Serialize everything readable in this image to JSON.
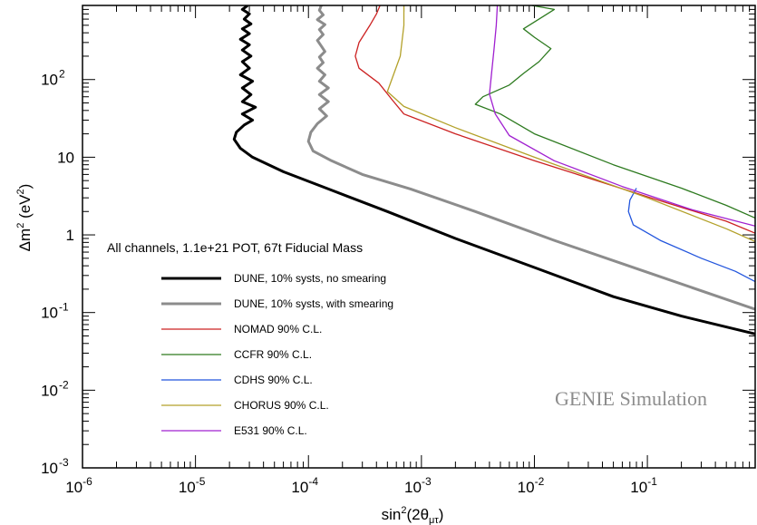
{
  "chart_data": {
    "type": "line",
    "xlabel": {
      "base": "sin",
      "sup": "2",
      "arg_open": "(2θ",
      "sub": "μτ",
      "arg_close": ")"
    },
    "ylabel": {
      "prefix": "Δm",
      "sup": "2",
      "suffix": " (eV",
      "sup2": "2",
      "close": ")"
    },
    "xscale": "log",
    "yscale": "log",
    "xlim": [
      1e-06,
      0.9
    ],
    "ylim": [
      0.001,
      900
    ],
    "x_ticks": [
      {
        "value": 1e-06,
        "base": "10",
        "exp": "-6"
      },
      {
        "value": 1e-05,
        "base": "10",
        "exp": "-5"
      },
      {
        "value": 0.0001,
        "base": "10",
        "exp": "-4"
      },
      {
        "value": 0.001,
        "base": "10",
        "exp": "-3"
      },
      {
        "value": 0.01,
        "base": "10",
        "exp": "-2"
      },
      {
        "value": 0.1,
        "base": "10",
        "exp": "-1"
      }
    ],
    "y_ticks": [
      {
        "value": 0.001,
        "base": "10",
        "exp": "-3"
      },
      {
        "value": 0.01,
        "base": "10",
        "exp": "-2"
      },
      {
        "value": 0.1,
        "base": "10",
        "exp": "-1"
      },
      {
        "value": 1,
        "base": "1",
        "exp": ""
      },
      {
        "value": 10,
        "base": "10",
        "exp": ""
      },
      {
        "value": 100,
        "base": "10",
        "exp": "2"
      }
    ],
    "header": "All channels, 1.1e+21 POT, 67t Fiducial Mass",
    "watermark": "GENIE Simulation",
    "legend_position": "left",
    "series": [
      {
        "name": "DUNE, 10% systs, no smearing",
        "color": "#000000",
        "width": 3,
        "points": [
          [
            2.9e-05,
            900
          ],
          [
            2.6e-05,
            800
          ],
          [
            3e-05,
            700
          ],
          [
            2.7e-05,
            600
          ],
          [
            3.1e-05,
            520
          ],
          [
            2.6e-05,
            450
          ],
          [
            3e-05,
            390
          ],
          [
            2.5e-05,
            330
          ],
          [
            3e-05,
            280
          ],
          [
            2.6e-05,
            240
          ],
          [
            3.1e-05,
            200
          ],
          [
            2.6e-05,
            170
          ],
          [
            3e-05,
            140
          ],
          [
            2.5e-05,
            115
          ],
          [
            3.2e-05,
            95
          ],
          [
            2.6e-05,
            78
          ],
          [
            3.1e-05,
            64
          ],
          [
            2.6e-05,
            52
          ],
          [
            3.4e-05,
            44
          ],
          [
            2.6e-05,
            36
          ],
          [
            3.2e-05,
            30
          ],
          [
            2.7e-05,
            26
          ],
          [
            2.3e-05,
            21
          ],
          [
            2.2e-05,
            17
          ],
          [
            2.5e-05,
            13
          ],
          [
            3.2e-05,
            10
          ],
          [
            6e-05,
            6.5
          ],
          [
            0.00015,
            3.9
          ],
          [
            0.0005,
            2.0
          ],
          [
            0.002,
            0.9
          ],
          [
            0.01,
            0.38
          ],
          [
            0.05,
            0.16
          ],
          [
            0.2,
            0.09
          ],
          [
            0.9,
            0.053
          ]
        ]
      },
      {
        "name": "DUNE, 10% systs, with smearing",
        "color": "#8c8c8c",
        "width": 3,
        "points": [
          [
            0.00013,
            900
          ],
          [
            0.000125,
            780
          ],
          [
            0.000135,
            680
          ],
          [
            0.00012,
            590
          ],
          [
            0.00014,
            510
          ],
          [
            0.000125,
            440
          ],
          [
            0.000135,
            380
          ],
          [
            0.00012,
            320
          ],
          [
            0.00013,
            270
          ],
          [
            0.00014,
            230
          ],
          [
            0.000125,
            195
          ],
          [
            0.000135,
            165
          ],
          [
            0.00012,
            140
          ],
          [
            0.00014,
            115
          ],
          [
            0.000125,
            95
          ],
          [
            0.00015,
            78
          ],
          [
            0.000125,
            64
          ],
          [
            0.00015,
            52
          ],
          [
            0.000125,
            42
          ],
          [
            0.000145,
            34
          ],
          [
            0.00012,
            27
          ],
          [
            0.000105,
            21
          ],
          [
            0.0001,
            16
          ],
          [
            0.00011,
            12
          ],
          [
            0.00016,
            9
          ],
          [
            0.0003,
            6
          ],
          [
            0.0008,
            3.9
          ],
          [
            0.003,
            2.0
          ],
          [
            0.015,
            0.85
          ],
          [
            0.1,
            0.33
          ],
          [
            0.9,
            0.11
          ]
        ]
      },
      {
        "name": "NOMAD 90% C.L.",
        "color": "#cc2222",
        "width": 1.3,
        "points": [
          [
            0.00043,
            900
          ],
          [
            0.0004,
            700
          ],
          [
            0.00035,
            500
          ],
          [
            0.00028,
            300
          ],
          [
            0.00026,
            200
          ],
          [
            0.00028,
            140
          ],
          [
            0.00042,
            90
          ],
          [
            0.00055,
            55
          ],
          [
            0.0007,
            36
          ],
          [
            0.002,
            20
          ],
          [
            0.01,
            9
          ],
          [
            0.1,
            3.1
          ],
          [
            0.5,
            1.5
          ],
          [
            0.9,
            1.05
          ]
        ]
      },
      {
        "name": "CCFR 90% C.L.",
        "color": "#2d7a1f",
        "width": 1.3,
        "points": [
          [
            0.0095,
            900
          ],
          [
            0.015,
            800
          ],
          [
            0.012,
            650
          ],
          [
            0.008,
            450
          ],
          [
            0.01,
            350
          ],
          [
            0.014,
            250
          ],
          [
            0.011,
            170
          ],
          [
            0.008,
            120
          ],
          [
            0.006,
            85
          ],
          [
            0.0035,
            60
          ],
          [
            0.003,
            48
          ],
          [
            0.005,
            36
          ],
          [
            0.01,
            20
          ],
          [
            0.05,
            8
          ],
          [
            0.2,
            4
          ],
          [
            0.5,
            2.4
          ],
          [
            0.9,
            1.65
          ]
        ]
      },
      {
        "name": "CDHS 90% C.L.",
        "color": "#2255dd",
        "width": 1.3,
        "points": [
          [
            0.08,
            4.0
          ],
          [
            0.07,
            2.8
          ],
          [
            0.068,
            2.0
          ],
          [
            0.075,
            1.35
          ],
          [
            0.13,
            0.85
          ],
          [
            0.3,
            0.5
          ],
          [
            0.6,
            0.34
          ],
          [
            0.9,
            0.25
          ]
        ]
      },
      {
        "name": "CHORUS 90% C.L.",
        "color": "#b3a12a",
        "width": 1.3,
        "points": [
          [
            0.0007,
            900
          ],
          [
            0.0007,
            500
          ],
          [
            0.00065,
            200
          ],
          [
            0.0005,
            70
          ],
          [
            0.0007,
            45
          ],
          [
            0.002,
            24
          ],
          [
            0.01,
            10
          ],
          [
            0.1,
            3.0
          ],
          [
            0.5,
            1.2
          ],
          [
            0.9,
            0.82
          ]
        ]
      },
      {
        "name": "E531 90% C.L.",
        "color": "#a020d0",
        "width": 1.3,
        "points": [
          [
            0.0047,
            900
          ],
          [
            0.0046,
            500
          ],
          [
            0.0044,
            250
          ],
          [
            0.0042,
            130
          ],
          [
            0.004,
            65
          ],
          [
            0.0045,
            36
          ],
          [
            0.006,
            19
          ],
          [
            0.015,
            9
          ],
          [
            0.06,
            4.2
          ],
          [
            0.25,
            2.1
          ],
          [
            0.9,
            1.3
          ]
        ]
      }
    ]
  }
}
